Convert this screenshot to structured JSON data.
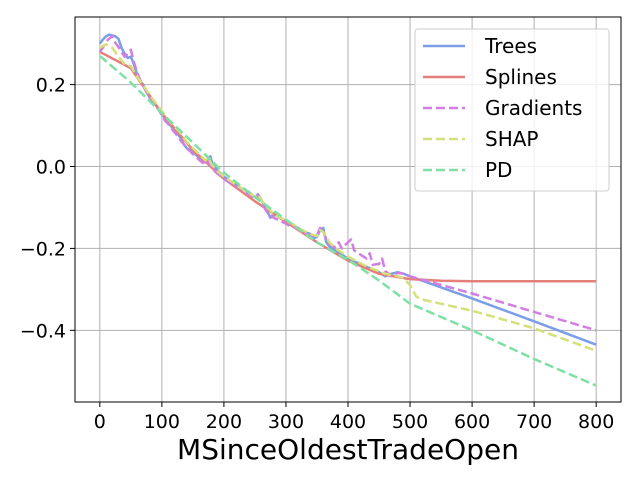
{
  "chart_data": {
    "type": "line",
    "title": "",
    "xlabel": "MSinceOldestTradeOpen",
    "ylabel": "",
    "xlim": [
      -40,
      840
    ],
    "ylim": [
      -0.575,
      0.365
    ],
    "xticks": [
      0,
      100,
      200,
      300,
      400,
      500,
      600,
      700,
      800
    ],
    "xtick_labels": [
      "0",
      "100",
      "200",
      "300",
      "400",
      "500",
      "600",
      "700",
      "800"
    ],
    "yticks": [
      0.2,
      0.0,
      -0.2,
      -0.4
    ],
    "ytick_labels": [
      "0.2",
      "0.0",
      "−0.2",
      "−0.4"
    ],
    "grid": true,
    "legend_position": "upper-right",
    "series": [
      {
        "name": "Trees",
        "color": "#7b9ee6",
        "dash": "solid",
        "points": [
          [
            0,
            0.3
          ],
          [
            5,
            0.31
          ],
          [
            10,
            0.318
          ],
          [
            15,
            0.322
          ],
          [
            20,
            0.32
          ],
          [
            25,
            0.318
          ],
          [
            30,
            0.312
          ],
          [
            35,
            0.29
          ],
          [
            40,
            0.275
          ],
          [
            45,
            0.265
          ],
          [
            50,
            0.268
          ],
          [
            55,
            0.25
          ],
          [
            60,
            0.225
          ],
          [
            65,
            0.208
          ],
          [
            70,
            0.2
          ],
          [
            75,
            0.182
          ],
          [
            80,
            0.17
          ],
          [
            85,
            0.16
          ],
          [
            90,
            0.15
          ],
          [
            95,
            0.14
          ],
          [
            100,
            0.128
          ],
          [
            105,
            0.118
          ],
          [
            110,
            0.108
          ],
          [
            115,
            0.098
          ],
          [
            120,
            0.09
          ],
          [
            125,
            0.08
          ],
          [
            130,
            0.07
          ],
          [
            135,
            0.055
          ],
          [
            140,
            0.045
          ],
          [
            145,
            0.04
          ],
          [
            150,
            0.035
          ],
          [
            155,
            0.028
          ],
          [
            160,
            0.022
          ],
          [
            165,
            0.018
          ],
          [
            170,
            0.01
          ],
          [
            175,
            0.02
          ],
          [
            178,
            0.025
          ],
          [
            182,
            0.005
          ],
          [
            190,
            -0.01
          ],
          [
            200,
            -0.025
          ],
          [
            210,
            -0.035
          ],
          [
            220,
            -0.045
          ],
          [
            230,
            -0.055
          ],
          [
            240,
            -0.062
          ],
          [
            250,
            -0.075
          ],
          [
            255,
            -0.068
          ],
          [
            260,
            -0.08
          ],
          [
            265,
            -0.095
          ],
          [
            270,
            -0.11
          ],
          [
            275,
            -0.125
          ],
          [
            280,
            -0.12
          ],
          [
            285,
            -0.118
          ],
          [
            290,
            -0.125
          ],
          [
            300,
            -0.135
          ],
          [
            310,
            -0.145
          ],
          [
            320,
            -0.15
          ],
          [
            330,
            -0.16
          ],
          [
            340,
            -0.165
          ],
          [
            345,
            -0.175
          ],
          [
            350,
            -0.172
          ],
          [
            355,
            -0.155
          ],
          [
            360,
            -0.15
          ],
          [
            365,
            -0.185
          ],
          [
            370,
            -0.195
          ],
          [
            380,
            -0.205
          ],
          [
            390,
            -0.215
          ],
          [
            400,
            -0.225
          ],
          [
            410,
            -0.232
          ],
          [
            420,
            -0.238
          ],
          [
            430,
            -0.245
          ],
          [
            440,
            -0.252
          ],
          [
            450,
            -0.258
          ],
          [
            460,
            -0.268
          ],
          [
            470,
            -0.262
          ],
          [
            480,
            -0.258
          ],
          [
            490,
            -0.262
          ],
          [
            500,
            -0.268
          ],
          [
            600,
            -0.322
          ],
          [
            700,
            -0.378
          ],
          [
            800,
            -0.435
          ]
        ]
      },
      {
        "name": "Splines",
        "color": "#e57f7a",
        "dash": "solid",
        "points": [
          [
            0,
            0.28
          ],
          [
            50,
            0.24
          ],
          [
            100,
            0.13
          ],
          [
            150,
            0.04
          ],
          [
            200,
            -0.03
          ],
          [
            250,
            -0.085
          ],
          [
            300,
            -0.135
          ],
          [
            350,
            -0.185
          ],
          [
            400,
            -0.23
          ],
          [
            450,
            -0.262
          ],
          [
            500,
            -0.275
          ],
          [
            550,
            -0.279
          ],
          [
            600,
            -0.28
          ],
          [
            700,
            -0.28
          ],
          [
            800,
            -0.28
          ]
        ]
      },
      {
        "name": "Gradients",
        "color": "#d27ee3",
        "dash": "dashed",
        "points": [
          [
            0,
            0.28
          ],
          [
            5,
            0.29
          ],
          [
            10,
            0.305
          ],
          [
            15,
            0.312
          ],
          [
            20,
            0.318
          ],
          [
            25,
            0.302
          ],
          [
            30,
            0.292
          ],
          [
            35,
            0.28
          ],
          [
            40,
            0.268
          ],
          [
            45,
            0.275
          ],
          [
            50,
            0.285
          ],
          [
            55,
            0.255
          ],
          [
            60,
            0.23
          ],
          [
            65,
            0.212
          ],
          [
            70,
            0.196
          ],
          [
            75,
            0.182
          ],
          [
            80,
            0.168
          ],
          [
            85,
            0.16
          ],
          [
            90,
            0.148
          ],
          [
            95,
            0.138
          ],
          [
            100,
            0.125
          ],
          [
            105,
            0.112
          ],
          [
            110,
            0.104
          ],
          [
            115,
            0.094
          ],
          [
            120,
            0.084
          ],
          [
            125,
            0.075
          ],
          [
            130,
            0.064
          ],
          [
            135,
            0.055
          ],
          [
            140,
            0.044
          ],
          [
            145,
            0.038
          ],
          [
            150,
            0.03
          ],
          [
            155,
            0.024
          ],
          [
            160,
            0.016
          ],
          [
            165,
            0.01
          ],
          [
            170,
            0.004
          ],
          [
            175,
            0.012
          ],
          [
            180,
            -0.004
          ],
          [
            190,
            -0.018
          ],
          [
            200,
            -0.03
          ],
          [
            210,
            -0.04
          ],
          [
            220,
            -0.048
          ],
          [
            230,
            -0.058
          ],
          [
            240,
            -0.068
          ],
          [
            250,
            -0.078
          ],
          [
            255,
            -0.07
          ],
          [
            260,
            -0.086
          ],
          [
            265,
            -0.1
          ],
          [
            270,
            -0.112
          ],
          [
            280,
            -0.125
          ],
          [
            290,
            -0.132
          ],
          [
            300,
            -0.14
          ],
          [
            310,
            -0.148
          ],
          [
            320,
            -0.15
          ],
          [
            330,
            -0.162
          ],
          [
            340,
            -0.17
          ],
          [
            350,
            -0.168
          ],
          [
            355,
            -0.15
          ],
          [
            360,
            -0.158
          ],
          [
            365,
            -0.178
          ],
          [
            370,
            -0.19
          ],
          [
            380,
            -0.198
          ],
          [
            385,
            -0.185
          ],
          [
            390,
            -0.2
          ],
          [
            400,
            -0.185
          ],
          [
            405,
            -0.178
          ],
          [
            410,
            -0.205
          ],
          [
            420,
            -0.215
          ],
          [
            430,
            -0.225
          ],
          [
            435,
            -0.212
          ],
          [
            440,
            -0.24
          ],
          [
            450,
            -0.238
          ],
          [
            455,
            -0.225
          ],
          [
            460,
            -0.255
          ],
          [
            470,
            -0.268
          ],
          [
            480,
            -0.26
          ],
          [
            490,
            -0.262
          ],
          [
            500,
            -0.268
          ],
          [
            600,
            -0.31
          ],
          [
            700,
            -0.355
          ],
          [
            800,
            -0.4
          ]
        ]
      },
      {
        "name": "SHAP",
        "color": "#d5e07a",
        "dash": "dashed",
        "points": [
          [
            0,
            0.29
          ],
          [
            10,
            0.298
          ],
          [
            20,
            0.29
          ],
          [
            30,
            0.268
          ],
          [
            40,
            0.25
          ],
          [
            50,
            0.245
          ],
          [
            60,
            0.22
          ],
          [
            70,
            0.198
          ],
          [
            80,
            0.175
          ],
          [
            90,
            0.155
          ],
          [
            100,
            0.135
          ],
          [
            110,
            0.115
          ],
          [
            120,
            0.098
          ],
          [
            130,
            0.082
          ],
          [
            140,
            0.06
          ],
          [
            150,
            0.045
          ],
          [
            160,
            0.03
          ],
          [
            170,
            0.015
          ],
          [
            175,
            0.022
          ],
          [
            180,
            0.005
          ],
          [
            190,
            -0.012
          ],
          [
            200,
            -0.025
          ],
          [
            210,
            -0.035
          ],
          [
            220,
            -0.045
          ],
          [
            230,
            -0.055
          ],
          [
            240,
            -0.064
          ],
          [
            250,
            -0.074
          ],
          [
            255,
            -0.068
          ],
          [
            260,
            -0.082
          ],
          [
            270,
            -0.1
          ],
          [
            280,
            -0.115
          ],
          [
            290,
            -0.124
          ],
          [
            300,
            -0.132
          ],
          [
            310,
            -0.14
          ],
          [
            320,
            -0.15
          ],
          [
            330,
            -0.158
          ],
          [
            340,
            -0.165
          ],
          [
            350,
            -0.17
          ],
          [
            355,
            -0.155
          ],
          [
            360,
            -0.16
          ],
          [
            370,
            -0.185
          ],
          [
            380,
            -0.2
          ],
          [
            390,
            -0.21
          ],
          [
            400,
            -0.22
          ],
          [
            410,
            -0.228
          ],
          [
            420,
            -0.236
          ],
          [
            430,
            -0.244
          ],
          [
            440,
            -0.25
          ],
          [
            450,
            -0.256
          ],
          [
            460,
            -0.262
          ],
          [
            470,
            -0.265
          ],
          [
            480,
            -0.268
          ],
          [
            490,
            -0.272
          ],
          [
            500,
            -0.29
          ],
          [
            510,
            -0.318
          ],
          [
            520,
            -0.325
          ],
          [
            600,
            -0.352
          ],
          [
            700,
            -0.395
          ],
          [
            800,
            -0.45
          ]
        ]
      },
      {
        "name": "PD",
        "color": "#7fe0a5",
        "dash": "dashed",
        "points": [
          [
            0,
            0.27
          ],
          [
            50,
            0.205
          ],
          [
            100,
            0.13
          ],
          [
            150,
            0.058
          ],
          [
            200,
            -0.015
          ],
          [
            250,
            -0.075
          ],
          [
            300,
            -0.13
          ],
          [
            350,
            -0.185
          ],
          [
            400,
            -0.228
          ],
          [
            450,
            -0.278
          ],
          [
            500,
            -0.335
          ],
          [
            600,
            -0.4
          ],
          [
            700,
            -0.47
          ],
          [
            800,
            -0.535
          ]
        ]
      }
    ]
  }
}
